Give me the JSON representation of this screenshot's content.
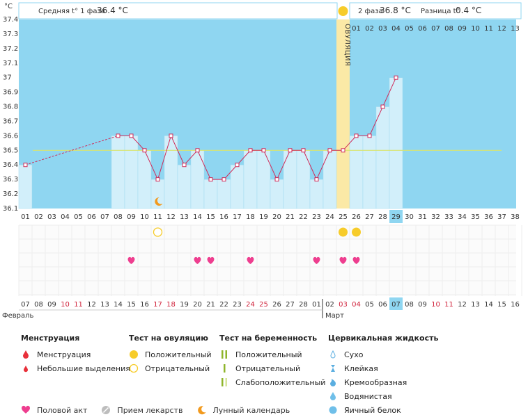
{
  "chart_data": {
    "type": "bar",
    "unit_label": "°C",
    "y_ticks": [
      "37.4",
      "37.3",
      "37.2",
      "37.1",
      "37",
      "36.9",
      "36.8",
      "36.7",
      "36.6",
      "36.5",
      "36.4",
      "36.3",
      "36.2",
      "36.1"
    ],
    "ylim": [
      36.1,
      37.4
    ],
    "cover_line": 36.5,
    "cycle_days": [
      "01",
      "02",
      "03",
      "04",
      "05",
      "06",
      "07",
      "08",
      "09",
      "10",
      "11",
      "12",
      "13",
      "14",
      "15",
      "16",
      "17",
      "18",
      "19",
      "20",
      "21",
      "22",
      "23",
      "24",
      "25",
      "26",
      "27",
      "28",
      "29",
      "30",
      "31",
      "32",
      "33",
      "34",
      "35",
      "36",
      "37",
      "38"
    ],
    "temperatures": [
      36.4,
      null,
      null,
      null,
      null,
      null,
      null,
      36.6,
      36.6,
      36.5,
      36.3,
      36.6,
      36.4,
      36.5,
      36.3,
      36.3,
      36.4,
      36.5,
      36.5,
      36.3,
      36.5,
      36.5,
      36.3,
      36.5,
      36.5,
      36.6,
      36.6,
      36.8,
      37.0,
      null,
      null,
      null,
      null,
      null,
      null,
      null,
      null,
      null
    ],
    "ovulation_day": 25,
    "today_cycle_day": 29,
    "phase2_days": [
      "01",
      "02",
      "03",
      "04",
      "05",
      "06",
      "07",
      "08",
      "09",
      "10",
      "11",
      "12",
      "13"
    ],
    "calendar_days": [
      {
        "d": "07",
        "w": false
      },
      {
        "d": "08",
        "w": false
      },
      {
        "d": "09",
        "w": false
      },
      {
        "d": "10",
        "w": true
      },
      {
        "d": "11",
        "w": true
      },
      {
        "d": "12",
        "w": false
      },
      {
        "d": "13",
        "w": false
      },
      {
        "d": "14",
        "w": false
      },
      {
        "d": "15",
        "w": false
      },
      {
        "d": "16",
        "w": false
      },
      {
        "d": "17",
        "w": true
      },
      {
        "d": "18",
        "w": true
      },
      {
        "d": "19",
        "w": false
      },
      {
        "d": "20",
        "w": false
      },
      {
        "d": "21",
        "w": false
      },
      {
        "d": "22",
        "w": false
      },
      {
        "d": "23",
        "w": false
      },
      {
        "d": "24",
        "w": true
      },
      {
        "d": "25",
        "w": true
      },
      {
        "d": "26",
        "w": false
      },
      {
        "d": "27",
        "w": false
      },
      {
        "d": "28",
        "w": false
      },
      {
        "d": "01",
        "w": false
      },
      {
        "d": "02",
        "w": false
      },
      {
        "d": "03",
        "w": true
      },
      {
        "d": "04",
        "w": true
      },
      {
        "d": "05",
        "w": false
      },
      {
        "d": "06",
        "w": false
      },
      {
        "d": "07",
        "w": false
      },
      {
        "d": "08",
        "w": false
      },
      {
        "d": "09",
        "w": false
      },
      {
        "d": "10",
        "w": true
      },
      {
        "d": "11",
        "w": true
      },
      {
        "d": "12",
        "w": false
      },
      {
        "d": "13",
        "w": false
      },
      {
        "d": "14",
        "w": false
      },
      {
        "d": "15",
        "w": false
      },
      {
        "d": "16",
        "w": false
      }
    ],
    "month_labels": [
      {
        "text": "Февраль",
        "day_index": 1
      },
      {
        "text": "Март",
        "day_index": 23
      }
    ],
    "moon_day": 11,
    "ovulation_tests": [
      {
        "day": 11,
        "result": "negative"
      },
      {
        "day": 25,
        "result": "positive"
      },
      {
        "day": 26,
        "result": "positive"
      }
    ],
    "intercourse_days": [
      9,
      14,
      15,
      18,
      23,
      25,
      26
    ],
    "phase1": {
      "label": "Средняя t° 1 фаза",
      "value": "36.4 °C"
    },
    "phase2": {
      "label": "2 фаза",
      "value": "36.8 °C",
      "diff_label": "Разница t°",
      "diff_value": "0.4 °C"
    },
    "ovulation_label": "ОВУЛЯЦИЯ"
  },
  "colors": {
    "sky": "#8fd6f1",
    "bar": "#d2effa",
    "ovulation": "#fbe9a6",
    "line": "#d02a58",
    "cover": "#d9e56d",
    "today": "#8fd6f1",
    "heart": "#ee3e8f",
    "sun": "#f7cc2a"
  },
  "legend": {
    "menstruation": {
      "title": "Менструация",
      "items": [
        "Менструация",
        "Небольшие выделения"
      ]
    },
    "ovulation_test": {
      "title": "Тест на овуляцию",
      "items": [
        "Положительный",
        "Отрицательный"
      ]
    },
    "pregnancy_test": {
      "title": "Тест на беременность",
      "items": [
        "Положительный",
        "Отрицательный",
        "Слабоположительный"
      ]
    },
    "cervical": {
      "title": "Цервикальная жидкость",
      "items": [
        "Сухо",
        "Клейкая",
        "Кремообразная",
        "Водянистая",
        "Яичный белок"
      ]
    },
    "bottom": [
      "Половой акт",
      "Прием лекарств",
      "Лунный календарь"
    ]
  }
}
